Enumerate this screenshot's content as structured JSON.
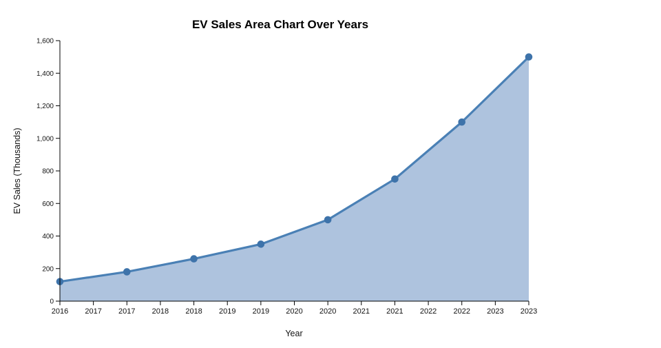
{
  "page": {
    "background": "#ffffff"
  },
  "chart_data": {
    "type": "area",
    "title": "EV Sales Area Chart Over Years",
    "xlabel": "Year",
    "ylabel": "EV Sales (Thousands)",
    "series": [
      {
        "name": "EV Sales",
        "x": [
          2016,
          2017,
          2018,
          2019,
          2020,
          2021,
          2022,
          2023
        ],
        "values": [
          120,
          180,
          260,
          350,
          500,
          750,
          1100,
          1500
        ]
      }
    ],
    "xlim": [
      2016,
      2023
    ],
    "ylim": [
      0,
      1600
    ],
    "y_ticks": [
      0,
      200,
      400,
      600,
      800,
      1000,
      1200,
      1400,
      1600
    ],
    "y_tick_labels": [
      "0",
      "200",
      "400",
      "600",
      "800",
      "1,000",
      "1,200",
      "1,400",
      "1,600"
    ],
    "x_tick_positions": [
      2016,
      2016.5,
      2017,
      2017.5,
      2018,
      2018.5,
      2019,
      2019.5,
      2020,
      2020.5,
      2021,
      2021.5,
      2022,
      2022.5,
      2023
    ],
    "x_tick_labels": [
      "2016",
      "2017",
      "2017",
      "2018",
      "2018",
      "2019",
      "2019",
      "2020",
      "2020",
      "2021",
      "2021",
      "2022",
      "2022",
      "2023",
      "2023"
    ],
    "grid": false,
    "legend": "none",
    "has_point_markers": true,
    "colors": {
      "line": "#4a80b5",
      "fill": "#aec3de",
      "point": "#3e73aa",
      "axis": "#000000",
      "label": "#111111"
    }
  }
}
